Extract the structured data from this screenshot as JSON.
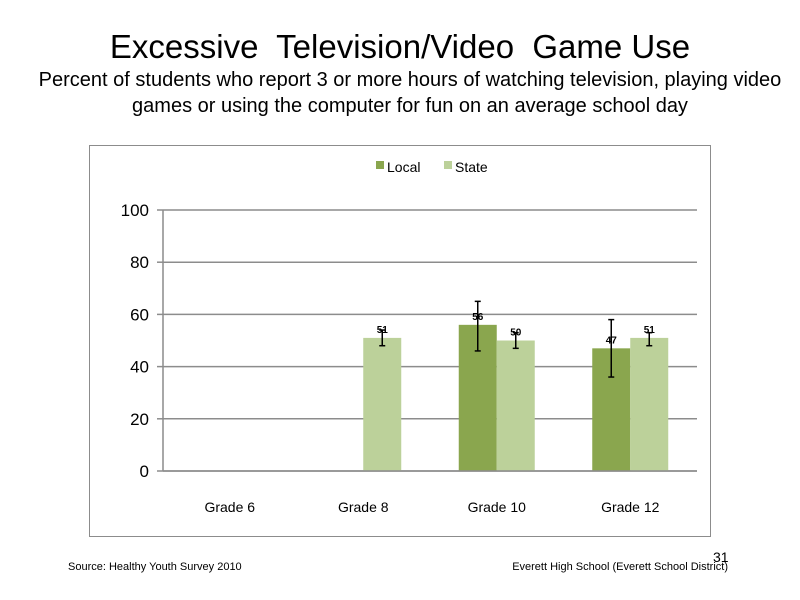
{
  "header": {
    "title": "Excessive  Television/Video  Game Use",
    "subtitle": "Percent of students who report 3 or more hours of watching television, playing video games or using the computer for fun on an average school day"
  },
  "chart_data": {
    "type": "bar",
    "categories": [
      "Grade 6",
      "Grade 8",
      "Grade 10",
      "Grade 12"
    ],
    "series": [
      {
        "name": "Local",
        "color": "#8aa64e",
        "values": [
          null,
          null,
          56,
          47
        ],
        "error_low": [
          null,
          null,
          46,
          36
        ],
        "error_high": [
          null,
          null,
          65,
          58
        ]
      },
      {
        "name": "State",
        "color": "#bcd19a",
        "values": [
          null,
          51,
          50,
          51
        ],
        "error_low": [
          null,
          48,
          47,
          48
        ],
        "error_high": [
          null,
          54,
          53,
          53
        ]
      }
    ],
    "data_labels": [
      [
        null,
        null,
        "56",
        "47"
      ],
      [
        null,
        "51",
        "50",
        "51"
      ]
    ],
    "ylim": [
      0,
      100
    ],
    "yticks": [
      0,
      20,
      40,
      60,
      80,
      100
    ],
    "grid": true,
    "legend_position": "top-center",
    "xlabel": "",
    "ylabel": ""
  },
  "footer": {
    "source": "Source: Healthy Youth Survey 2010",
    "organization": "Everett High School (Everett School District)",
    "page_number": "31"
  }
}
